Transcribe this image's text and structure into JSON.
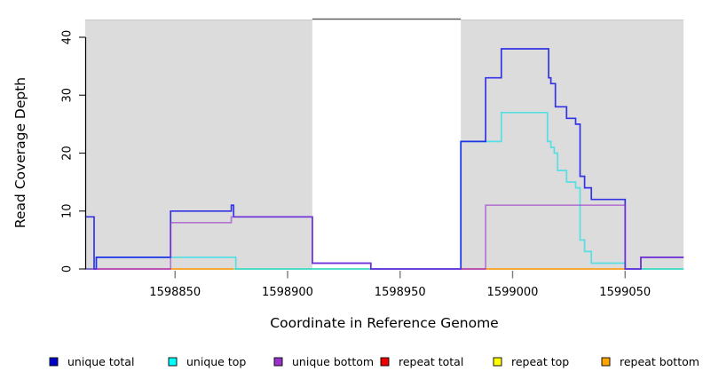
{
  "figure": {
    "background": "#ffffff",
    "plot_shade_color": "#dcdcdc",
    "gap_top_border_color": "#5f5f5f"
  },
  "y_axis": {
    "title": "Read Coverage Depth",
    "tick_labels": [
      "0",
      "10",
      "20",
      "30",
      "40"
    ],
    "tick_values": [
      0,
      10,
      20,
      30,
      40
    ]
  },
  "x_axis": {
    "title": "Coordinate in Reference Genome",
    "tick_labels": [
      "1598850",
      "1598900",
      "1598950",
      "1599000",
      "1599050"
    ],
    "tick_values": [
      1598850,
      1598900,
      1598950,
      1599000,
      1599050
    ]
  },
  "legend": {
    "items": [
      {
        "label": "unique total",
        "color": "#0000cd"
      },
      {
        "label": "unique top",
        "color": "#00ffff"
      },
      {
        "label": "unique bottom",
        "color": "#9932cc"
      },
      {
        "label": "repeat total",
        "color": "#ee0000"
      },
      {
        "label": "repeat top",
        "color": "#ffff00"
      },
      {
        "label": "repeat bottom",
        "color": "#ffa500"
      }
    ]
  },
  "chart_data": {
    "type": "line",
    "subtype": "step-coverage",
    "title": "",
    "xlabel": "Coordinate in Reference Genome",
    "ylabel": "Read Coverage Depth",
    "xlim": [
      1598810,
      1599076
    ],
    "ylim": [
      0,
      43
    ],
    "x_ticks": [
      1598850,
      1598900,
      1598950,
      1599000,
      1599050
    ],
    "y_ticks": [
      0,
      10,
      20,
      30,
      40
    ],
    "grid": false,
    "legend_position": "bottom",
    "shaded_regions": [
      {
        "start": 1598810,
        "end": 1598911
      },
      {
        "start": 1598977,
        "end": 1599076
      }
    ],
    "unshaded_gap": {
      "start": 1598911,
      "end": 1598977
    },
    "series": [
      {
        "name": "unique total",
        "color": "#1515e6",
        "opacity": 0.85,
        "draw_order": 2,
        "steps": [
          [
            1598810,
            9
          ],
          [
            1598814,
            0
          ],
          [
            1598815,
            2
          ],
          [
            1598848,
            10
          ],
          [
            1598875,
            11
          ],
          [
            1598876,
            9
          ],
          [
            1598911,
            1
          ],
          [
            1598937,
            0
          ],
          [
            1598977,
            22
          ],
          [
            1598988,
            33
          ],
          [
            1598995,
            38
          ],
          [
            1599016,
            33
          ],
          [
            1599017,
            32
          ],
          [
            1599019,
            28
          ],
          [
            1599024,
            26
          ],
          [
            1599028,
            25
          ],
          [
            1599030,
            16
          ],
          [
            1599032,
            14
          ],
          [
            1599035,
            12
          ],
          [
            1599050,
            0
          ],
          [
            1599057,
            2
          ]
        ]
      },
      {
        "name": "unique top",
        "color": "#00e0e8",
        "opacity": 0.6,
        "draw_order": 1,
        "steps": [
          [
            1598810,
            0
          ],
          [
            1598815,
            2
          ],
          [
            1598877,
            0
          ],
          [
            1598977,
            22
          ],
          [
            1598995,
            27
          ],
          [
            1599015.5,
            22
          ],
          [
            1599017,
            21
          ],
          [
            1599018.5,
            20
          ],
          [
            1599020,
            17
          ],
          [
            1599024,
            15
          ],
          [
            1599028,
            14
          ],
          [
            1599030,
            5
          ],
          [
            1599032,
            3
          ],
          [
            1599035,
            1
          ],
          [
            1599050,
            0
          ]
        ]
      },
      {
        "name": "unique bottom",
        "color": "#9932cc",
        "opacity": 0.6,
        "draw_order": 3,
        "steps": [
          [
            1598810,
            0
          ],
          [
            1598848,
            8
          ],
          [
            1598875,
            9
          ],
          [
            1598911,
            1
          ],
          [
            1598937,
            0
          ],
          [
            1598988,
            11
          ],
          [
            1599050,
            0
          ],
          [
            1599057,
            2
          ]
        ]
      },
      {
        "name": "repeat total",
        "color": "#ee0000",
        "opacity": 0.9,
        "draw_order": 0,
        "steps": [
          [
            1598810,
            0
          ]
        ],
        "note": "zero across the plotted range; visible as colored baseline blend"
      },
      {
        "name": "repeat top",
        "color": "#ffff00",
        "opacity": 0.9,
        "draw_order": 0,
        "steps": [
          [
            1598810,
            0
          ]
        ],
        "note": "zero across the plotted range; visible as colored baseline blend"
      },
      {
        "name": "repeat bottom",
        "color": "#ffa500",
        "opacity": 0.9,
        "draw_order": 0,
        "steps": [
          [
            1598810,
            0
          ]
        ],
        "note": "zero across the plotted range; visible as colored baseline blend"
      }
    ],
    "baseline_segments": [
      {
        "start": 1598810,
        "end": 1598848,
        "color": "#e0507a"
      },
      {
        "start": 1598848,
        "end": 1598876,
        "color": "#ff9800"
      },
      {
        "start": 1598876,
        "end": 1598937,
        "color": "#90d890"
      },
      {
        "start": 1598977,
        "end": 1598988,
        "color": "#e05068"
      },
      {
        "start": 1598988,
        "end": 1599050,
        "color": "#ff9800"
      },
      {
        "start": 1599057,
        "end": 1599076,
        "color": "#90d890"
      }
    ]
  }
}
